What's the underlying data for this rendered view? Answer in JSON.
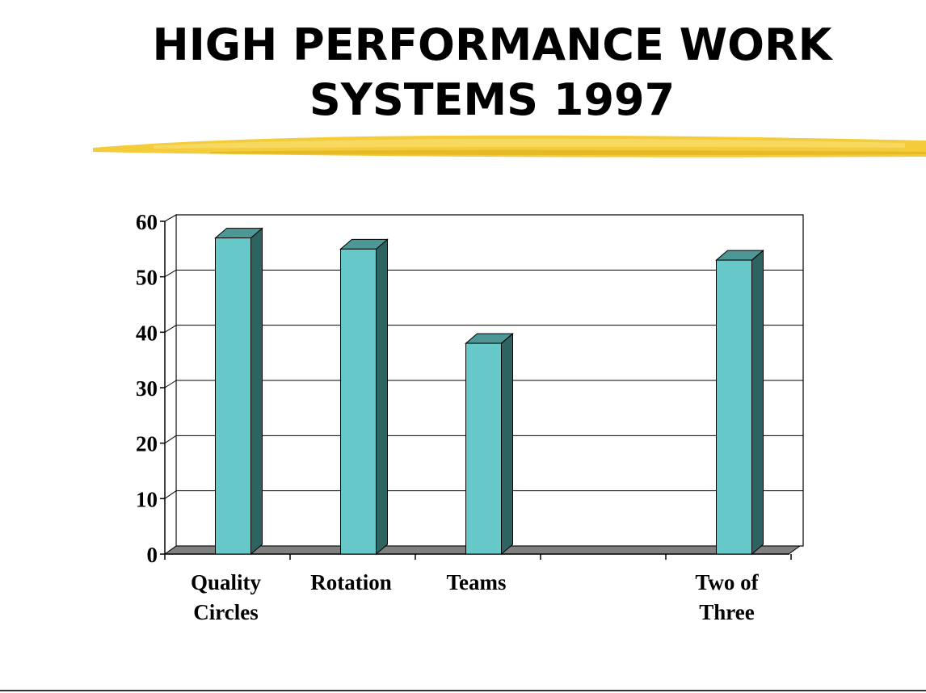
{
  "slide": {
    "title_line1": "HIGH PERFORMANCE WORK",
    "title_line2": "SYSTEMS 1997",
    "accent_color": "#f2c830"
  },
  "chart_data": {
    "type": "bar",
    "style": "3d-column",
    "categories": [
      [
        "Quality",
        "Circles"
      ],
      [
        "Rotation"
      ],
      [
        "Teams"
      ],
      [
        ""
      ],
      [
        "Two of",
        "Three"
      ]
    ],
    "values": [
      57,
      55,
      38,
      0,
      53
    ],
    "y_ticks": [
      0,
      10,
      20,
      30,
      40,
      50,
      60
    ],
    "ylim": [
      0,
      60
    ],
    "grid": true,
    "legend": "none",
    "bar_color": "#66c8c9",
    "bar_side_color": "#2d6461",
    "bar_top_color": "#4d9797",
    "floor_color": "#808080"
  }
}
